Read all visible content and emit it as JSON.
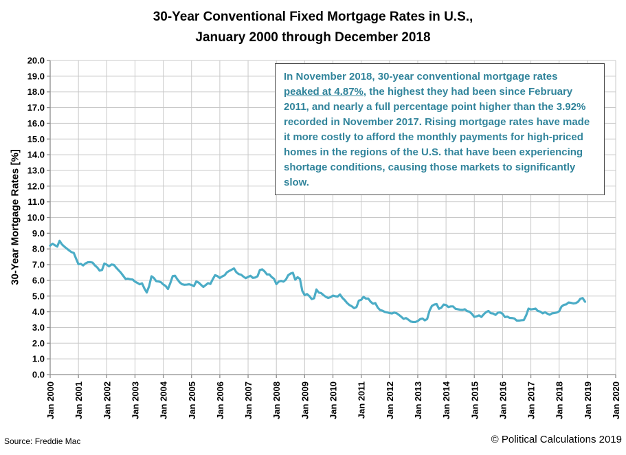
{
  "title": {
    "line1": "30-Year Conventional Fixed Mortgage Rates in U.S.,",
    "line2": "January 2000 through December 2018"
  },
  "annotation": {
    "part1": "In November 2018, 30-year conventional mortgage rates ",
    "underlined": "peaked at 4.87%",
    "part2": ", the highest they had been since February 2011, and nearly a full percentage point higher than the 3.92% recorded in November 2017.  Rising mortgage rates have made it more costly to afford the monthly payments for high-priced homes in the regions of the U.S. that have been experiencing shortage conditions, causing those markets to significantly slow."
  },
  "footer": {
    "source": "Source: Freddie Mac",
    "copyright": "© Political Calculations 2019"
  },
  "colors": {
    "line": "#4BACC6",
    "annotation_text": "#31849B",
    "gridline": "#C8C8C8",
    "axis": "#8C8C8C",
    "tick_label": "#000000"
  },
  "chart_data": {
    "type": "line",
    "title": "30-Year Conventional Fixed Mortgage Rates in U.S., January 2000 through December 2018",
    "xlabel": "",
    "ylabel": "30-Year Mortgage Rates [%]",
    "ylim": [
      0.0,
      20.0
    ],
    "y_tick_step": 1.0,
    "grid": true,
    "legend": false,
    "x_tick_labels": [
      "Jan 2000",
      "Jan 2001",
      "Jan 2002",
      "Jan 2003",
      "Jan 2004",
      "Jan 2005",
      "Jan 2006",
      "Jan 2007",
      "Jan 2008",
      "Jan 2009",
      "Jan 2010",
      "Jan 2011",
      "Jan 2012",
      "Jan 2013",
      "Jan 2014",
      "Jan 2015",
      "Jan 2016",
      "Jan 2017",
      "Jan 2018",
      "Jan 2019",
      "Jan 2020"
    ],
    "series": [
      {
        "name": "30-Year Conventional Fixed Mortgage Rate [%]",
        "frequency": "monthly",
        "start": "Jan 2000",
        "end": "Dec 2018",
        "values": [
          8.21,
          8.33,
          8.24,
          8.15,
          8.52,
          8.29,
          8.15,
          8.03,
          7.91,
          7.8,
          7.75,
          7.38,
          7.03,
          7.05,
          6.95,
          7.08,
          7.15,
          7.16,
          7.13,
          6.95,
          6.82,
          6.62,
          6.66,
          7.07,
          7.0,
          6.89,
          7.01,
          6.99,
          6.81,
          6.65,
          6.49,
          6.29,
          6.09,
          6.11,
          6.07,
          6.05,
          5.92,
          5.84,
          5.75,
          5.81,
          5.48,
          5.23,
          5.63,
          6.26,
          6.15,
          5.95,
          5.93,
          5.88,
          5.74,
          5.64,
          5.45,
          5.83,
          6.27,
          6.29,
          6.06,
          5.87,
          5.75,
          5.72,
          5.73,
          5.75,
          5.71,
          5.63,
          5.93,
          5.86,
          5.72,
          5.58,
          5.7,
          5.82,
          5.77,
          6.07,
          6.33,
          6.27,
          6.15,
          6.25,
          6.32,
          6.51,
          6.6,
          6.68,
          6.76,
          6.52,
          6.4,
          6.36,
          6.24,
          6.14,
          6.22,
          6.29,
          6.16,
          6.18,
          6.26,
          6.66,
          6.7,
          6.57,
          6.38,
          6.38,
          6.21,
          6.1,
          5.76,
          5.92,
          5.97,
          5.92,
          6.04,
          6.32,
          6.43,
          6.48,
          6.04,
          6.2,
          6.09,
          5.33,
          5.06,
          5.13,
          5.0,
          4.81,
          4.86,
          5.42,
          5.22,
          5.19,
          5.06,
          4.95,
          4.88,
          4.93,
          5.03,
          4.99,
          4.97,
          5.1,
          4.89,
          4.74,
          4.56,
          4.43,
          4.35,
          4.23,
          4.3,
          4.71,
          4.76,
          4.95,
          4.84,
          4.84,
          4.64,
          4.51,
          4.55,
          4.27,
          4.11,
          4.07,
          3.99,
          3.96,
          3.92,
          3.89,
          3.95,
          3.91,
          3.8,
          3.68,
          3.55,
          3.6,
          3.5,
          3.38,
          3.35,
          3.35,
          3.41,
          3.53,
          3.57,
          3.45,
          3.54,
          4.07,
          4.37,
          4.46,
          4.49,
          4.19,
          4.26,
          4.46,
          4.43,
          4.3,
          4.34,
          4.34,
          4.19,
          4.16,
          4.13,
          4.12,
          4.16,
          4.04,
          4.0,
          3.86,
          3.67,
          3.71,
          3.77,
          3.67,
          3.84,
          3.98,
          4.05,
          3.91,
          3.89,
          3.8,
          3.94,
          3.96,
          3.87,
          3.66,
          3.69,
          3.61,
          3.6,
          3.57,
          3.44,
          3.44,
          3.46,
          3.47,
          3.77,
          4.2,
          4.15,
          4.17,
          4.2,
          4.05,
          4.01,
          3.9,
          3.97,
          3.88,
          3.81,
          3.9,
          3.92,
          3.95,
          4.03,
          4.33,
          4.44,
          4.47,
          4.59,
          4.57,
          4.53,
          4.55,
          4.63,
          4.83,
          4.87,
          4.64
        ]
      }
    ]
  }
}
